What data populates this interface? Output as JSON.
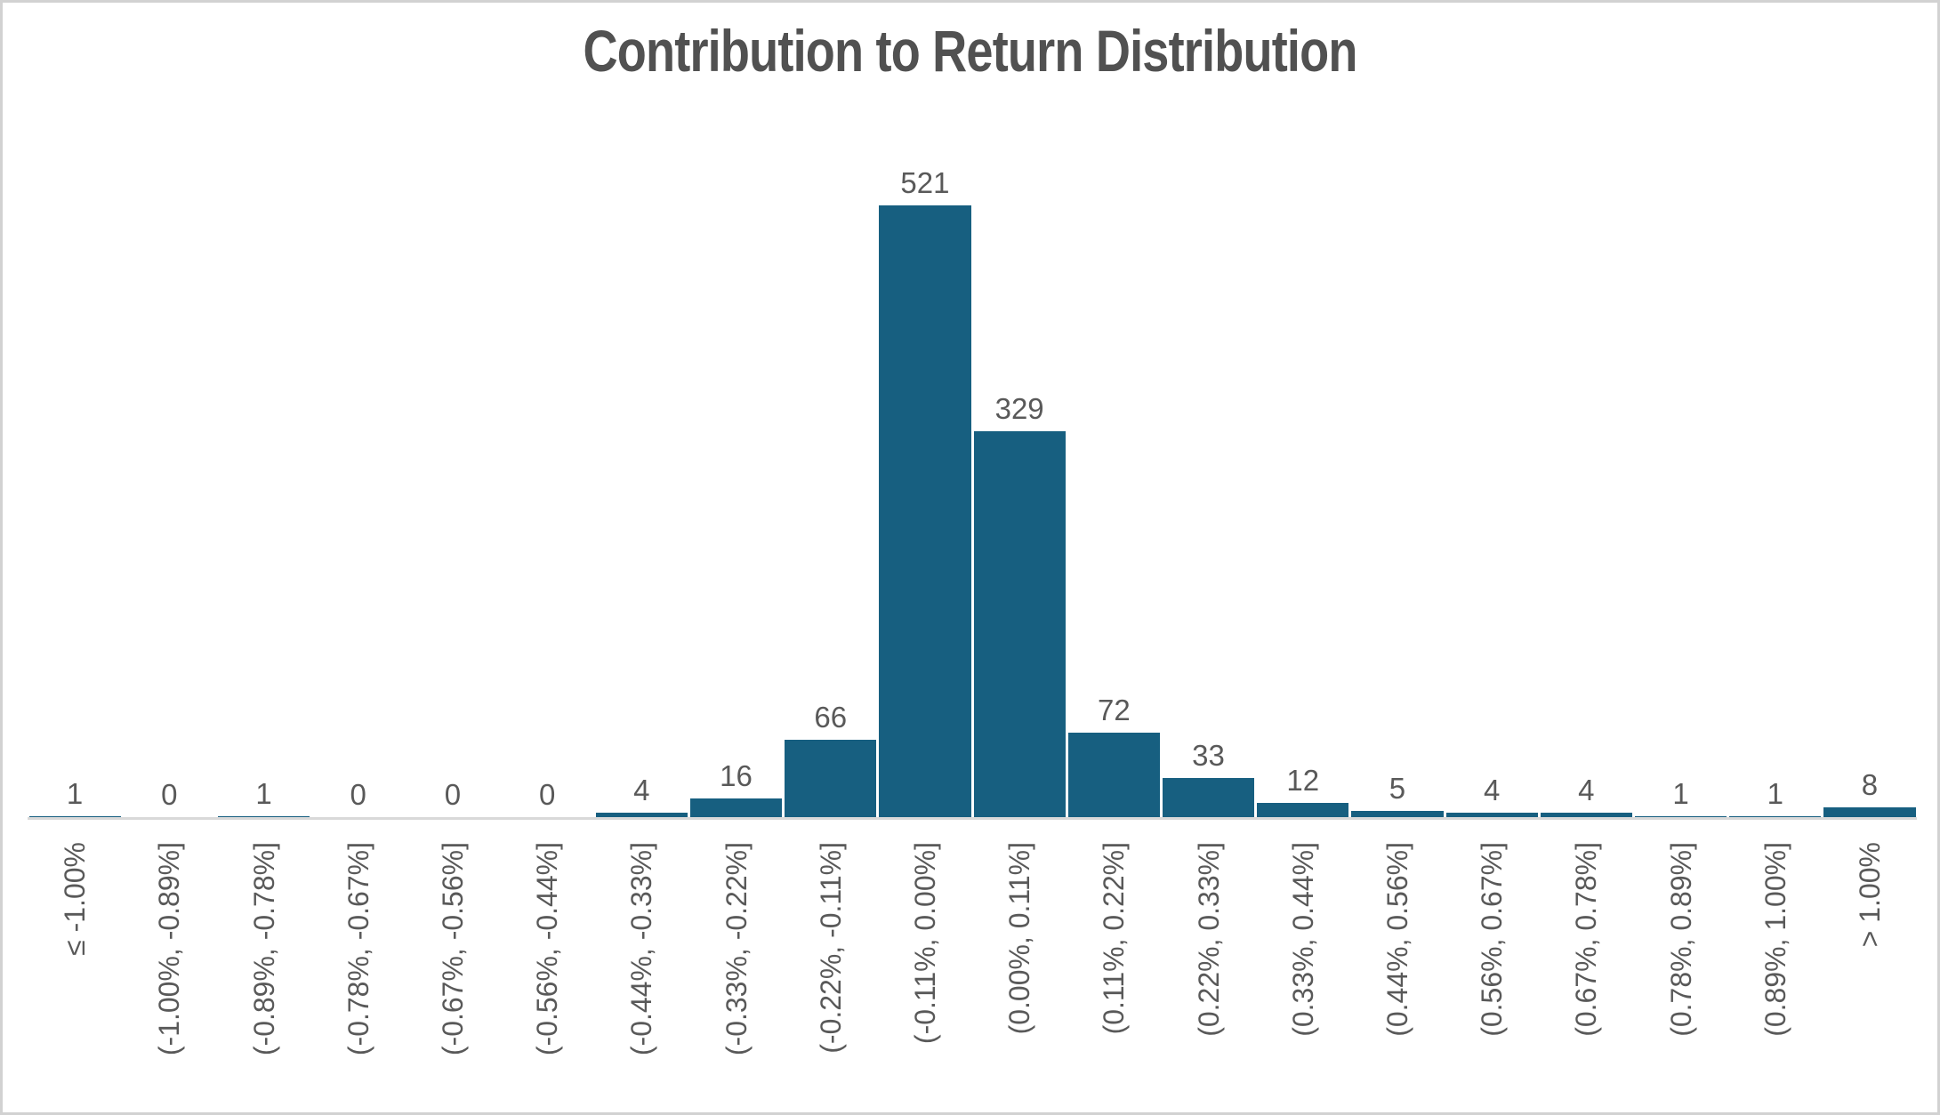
{
  "chart_data": {
    "type": "bar",
    "title": "Contribution to Return Distribution",
    "categories": [
      "≤ -1.00%",
      "(-1.00%, -0.89%]",
      "(-0.89%, -0.78%]",
      "(-0.78%, -0.67%]",
      "(-0.67%, -0.56%]",
      "(-0.56%, -0.44%]",
      "(-0.44%, -0.33%]",
      "(-0.33%, -0.22%]",
      "(-0.22%, -0.11%]",
      "(-0.11%, 0.00%]",
      "(0.00%, 0.11%]",
      "(0.11%, 0.22%]",
      "(0.22%, 0.33%]",
      "(0.33%, 0.44%]",
      "(0.44%, 0.56%]",
      "(0.56%, 0.67%]",
      "(0.67%, 0.78%]",
      "(0.78%, 0.89%]",
      "(0.89%, 1.00%]",
      "> 1.00%"
    ],
    "values": [
      1,
      0,
      1,
      0,
      0,
      0,
      4,
      16,
      66,
      521,
      329,
      72,
      33,
      12,
      5,
      4,
      4,
      1,
      1,
      8
    ],
    "xlabel": "",
    "ylabel": "",
    "ylim": [
      0,
      620
    ],
    "grid": false,
    "legend": false,
    "data_labels": true,
    "bar_color": "#175F80",
    "title_color": "#515151",
    "label_color": "#595959",
    "axis_line_color": "#D9D9D9"
  }
}
